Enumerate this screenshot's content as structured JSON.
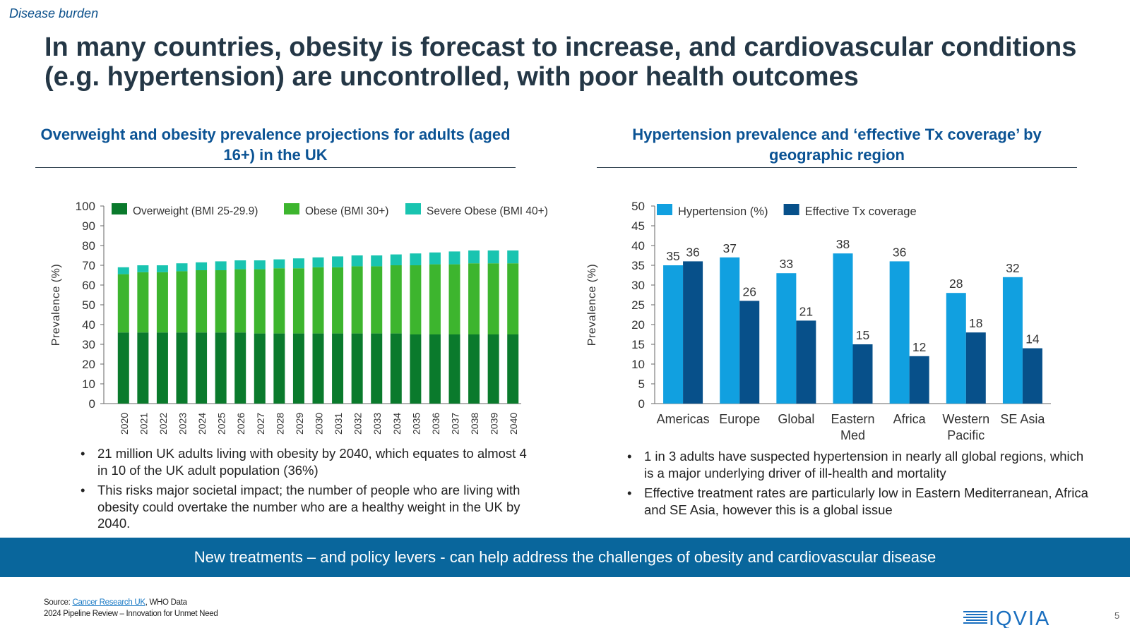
{
  "header": {
    "tag": "Disease burden",
    "title": "In many countries, obesity is forecast to increase, and cardiovascular conditions (e.g. hypertension) are uncontrolled, with poor health outcomes"
  },
  "left_panel": {
    "title": "Overweight and obesity prevalence projections for adults (aged 16+) in the UK",
    "bullets": [
      "21 million UK adults living with obesity by 2040, which equates to almost 4 in 10 of the UK adult population (36%)",
      "This risks major societal impact; the number of people who are living with obesity could overtake the number who are a healthy weight in the UK by 2040."
    ]
  },
  "right_panel": {
    "title": "Hypertension prevalence and ‘effective Tx coverage’ by geographic region",
    "bullets": [
      "1 in 3 adults have suspected hypertension in nearly all global regions, which is a major underlying driver of ill-health and mortality",
      "Effective treatment rates are particularly low in Eastern Mediterranean, Africa and SE Asia, however this is a global issue"
    ]
  },
  "banner": "New treatments – and policy levers - can help address the challenges of obesity and cardiovascular disease",
  "footer": {
    "source_prefix": "Source: ",
    "source_link": "Cancer Research UK",
    "source_suffix": ", WHO Data",
    "subtitle": "2024 Pipeline Review – Innovation for Unmet Need",
    "page_number": "5",
    "logo_text": "IQVIA"
  },
  "chart_data": [
    {
      "type": "bar",
      "stacked": true,
      "ylabel": "Prevalence (%)",
      "ylim": [
        0,
        100
      ],
      "yticks": [
        0,
        10,
        20,
        30,
        40,
        50,
        60,
        70,
        80,
        90,
        100
      ],
      "legend_position": "top",
      "categories": [
        "2020",
        "2021",
        "2022",
        "2023",
        "2024",
        "2025",
        "2026",
        "2027",
        "2028",
        "2029",
        "2030",
        "2031",
        "2032",
        "2033",
        "2034",
        "2035",
        "2036",
        "2037",
        "2038",
        "2039",
        "2040"
      ],
      "series": [
        {
          "name": "Overweight (BMI 25-29.9)",
          "color": "#0a7a2c",
          "values": [
            36,
            36,
            36,
            36,
            36,
            36,
            36,
            35.5,
            35.5,
            35.5,
            35.5,
            35.5,
            35.5,
            35.5,
            35.5,
            35,
            35,
            35,
            35,
            35,
            35
          ]
        },
        {
          "name": "Obese (BMI 30+)",
          "color": "#3db52e",
          "values": [
            29.5,
            30.5,
            30.5,
            31,
            31.5,
            31.5,
            32,
            32.5,
            33,
            33,
            33.5,
            33.5,
            34,
            34,
            34.5,
            35,
            35.5,
            35.5,
            36,
            36,
            36
          ]
        },
        {
          "name": "Severe Obese (BMI 40+)",
          "color": "#19c4b0",
          "values": [
            3.5,
            3.5,
            3.5,
            4,
            4,
            4.5,
            4.5,
            4.5,
            4.5,
            5,
            5,
            5.5,
            5.5,
            5.5,
            5.5,
            6,
            6,
            6.5,
            6.5,
            6.5,
            6.5
          ]
        }
      ]
    },
    {
      "type": "bar",
      "stacked": false,
      "ylabel": "Prevalence (%)",
      "ylim": [
        0,
        50
      ],
      "yticks": [
        0,
        5,
        10,
        15,
        20,
        25,
        30,
        35,
        40,
        45,
        50
      ],
      "legend_position": "top",
      "categories": [
        [
          "Americas"
        ],
        [
          "Europe"
        ],
        [
          "Global"
        ],
        [
          "Eastern",
          "Med"
        ],
        [
          "Africa"
        ],
        [
          "Western",
          "Pacific"
        ],
        [
          "SE Asia"
        ]
      ],
      "series": [
        {
          "name": "Hypertension (%)",
          "color": "#11a0e0",
          "values": [
            35,
            37,
            33,
            38,
            36,
            28,
            32
          ]
        },
        {
          "name": "Effective Tx coverage",
          "color": "#07508a",
          "values": [
            36,
            26,
            21,
            15,
            12,
            18,
            14
          ]
        }
      ]
    }
  ]
}
